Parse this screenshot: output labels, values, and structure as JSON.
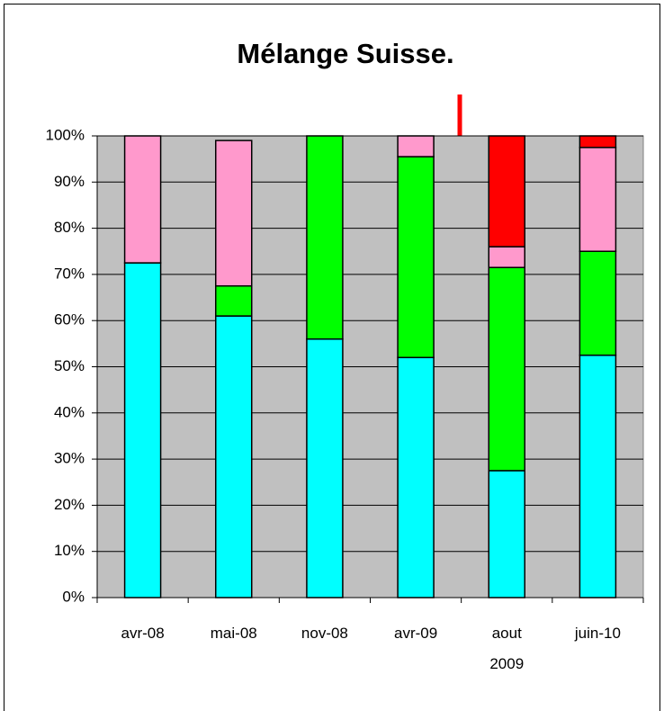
{
  "chart_data": {
    "type": "stacked_bar",
    "title": "Mélange Suisse.",
    "categories": [
      "avr-08",
      "mai-08",
      "nov-08",
      "avr-09",
      "aout 2009",
      "juin-10"
    ],
    "series": [
      {
        "color": "#00ffff",
        "values": [
          72.5,
          61,
          56,
          52,
          27.5,
          52.5
        ]
      },
      {
        "color": "#00ff00",
        "values": [
          0,
          6.5,
          44,
          43.5,
          44,
          22.5
        ]
      },
      {
        "color": "#ff99cc",
        "values": [
          27.5,
          31.5,
          0,
          4.5,
          4.5,
          22.5
        ]
      },
      {
        "color": "#ff0000",
        "values": [
          0,
          0,
          0,
          0,
          24,
          2.5
        ]
      }
    ],
    "ylim": [
      0,
      100
    ],
    "yticks": [
      {
        "value": 0,
        "label": "0%"
      },
      {
        "value": 10,
        "label": "10%"
      },
      {
        "value": 20,
        "label": "20%"
      },
      {
        "value": 30,
        "label": "30%"
      },
      {
        "value": 40,
        "label": "40%"
      },
      {
        "value": 50,
        "label": "50%"
      },
      {
        "value": 60,
        "label": "60%"
      },
      {
        "value": 70,
        "label": "70%"
      },
      {
        "value": 80,
        "label": "80%"
      },
      {
        "value": 90,
        "label": "90%"
      },
      {
        "value": 100,
        "label": "100%"
      }
    ],
    "grid": true,
    "plot_background": "#c0c0c0"
  }
}
